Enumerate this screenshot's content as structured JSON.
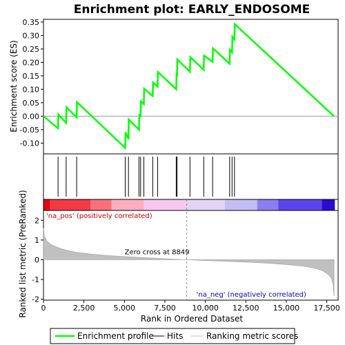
{
  "chart_data": {
    "type": "line",
    "title": "Enrichment plot: EARLY_ENDOSOME",
    "es_panel": {
      "ylabel": "Enrichment score (ES)",
      "ylim": [
        -0.14,
        0.36
      ],
      "yticks": [
        -0.1,
        -0.05,
        0.0,
        0.05,
        0.1,
        0.15,
        0.2,
        0.25,
        0.3,
        0.35
      ],
      "ytick_labels": [
        "-0.10",
        "-0.05",
        "0.00",
        "0.05",
        "0.10",
        "0.15",
        "0.20",
        "0.25",
        "0.30",
        "0.35"
      ],
      "series": [
        {
          "name": "Enrichment profile",
          "color": "#00ff00",
          "x": [
            0,
            900,
            920,
            1400,
            1420,
            2050,
            2070,
            5050,
            5070,
            5250,
            5270,
            5900,
            5920,
            6000,
            6020,
            6200,
            6220,
            6750,
            6770,
            7050,
            7070,
            8200,
            8220,
            8250,
            8270,
            9050,
            9070,
            9900,
            9920,
            10450,
            10470,
            11500,
            11520,
            11650,
            11670,
            11800,
            11820,
            17950
          ],
          "y": [
            0.0,
            -0.045,
            0.007,
            -0.025,
            0.033,
            -0.005,
            0.052,
            -0.118,
            -0.06,
            -0.085,
            -0.012,
            -0.05,
            0.007,
            -0.003,
            0.055,
            0.045,
            0.102,
            0.075,
            0.125,
            0.11,
            0.164,
            0.1,
            0.157,
            0.155,
            0.211,
            0.165,
            0.22,
            0.172,
            0.225,
            0.202,
            0.252,
            0.195,
            0.247,
            0.237,
            0.295,
            0.285,
            0.342,
            0.0
          ]
        }
      ]
    },
    "hits_panel": {
      "name": "Hits",
      "positions": [
        900,
        1400,
        2050,
        5050,
        5250,
        5900,
        6000,
        6200,
        6750,
        7050,
        8200,
        8250,
        9050,
        9900,
        10450,
        11500,
        11650,
        11800
      ]
    },
    "metric_panel": {
      "name": "Ranking metric scores",
      "ylabel": "Ranked list metric (PreRanked)",
      "xlabel": "Rank in Ordered Dataset",
      "ylim": [
        -2.05,
        2.5
      ],
      "yticks": [
        -2,
        -1,
        0,
        1,
        2
      ],
      "ytick_labels": [
        "-2",
        "-1",
        "0",
        "1",
        "2"
      ],
      "xlim": [
        0,
        18200
      ],
      "xticks": [
        0,
        2500,
        5000,
        7500,
        10000,
        12500,
        15000,
        17500
      ],
      "xtick_labels": [
        "0",
        "2,500",
        "5,000",
        "7,500",
        "10,000",
        "12,500",
        "15,000",
        "17,500"
      ],
      "zero_cross": 8849,
      "zero_cross_label": "Zero cross at 8849",
      "pos_label": "'na_pos' (positively correlated)",
      "neg_label": "'na_neg' (negatively correlated)",
      "curve": {
        "rank": [
          0,
          50,
          200,
          500,
          1000,
          1500,
          2000,
          3000,
          4000,
          5000,
          6000,
          7000,
          8000,
          8849,
          10000,
          11000,
          12000,
          13000,
          14000,
          15000,
          16000,
          16500,
          17000,
          17300,
          17600,
          17800,
          17900,
          17950
        ],
        "value": [
          1.6,
          1.2,
          0.95,
          0.75,
          0.58,
          0.46,
          0.38,
          0.28,
          0.21,
          0.16,
          0.11,
          0.07,
          0.03,
          0.0,
          -0.04,
          -0.07,
          -0.1,
          -0.14,
          -0.18,
          -0.24,
          -0.32,
          -0.38,
          -0.48,
          -0.58,
          -0.75,
          -0.95,
          -1.3,
          -1.85
        ]
      }
    },
    "gradient_colors": [
      "#e8000c",
      "#f23a45",
      "#f9707a",
      "#fcaec0",
      "#f8c8ee",
      "#e4d4f4",
      "#c4bcf4",
      "#8c7ef0",
      "#5a44ec",
      "#2c0ad0"
    ],
    "legend": [
      {
        "label": "Enrichment profile",
        "color": "#00ff00"
      },
      {
        "label": "Hits",
        "color": "#000000"
      },
      {
        "label": "Ranking metric scores",
        "color": "#c0c0c0"
      }
    ]
  }
}
